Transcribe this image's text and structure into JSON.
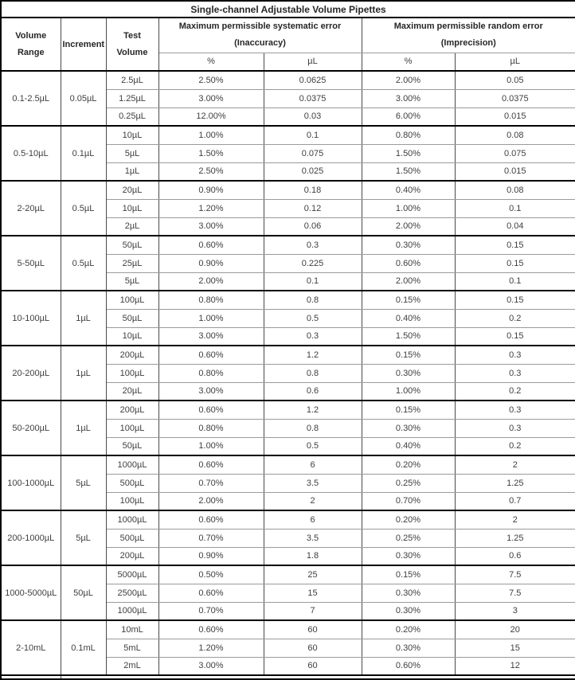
{
  "table": {
    "title": "Single-channel Adjustable Volume Pipettes",
    "columns": {
      "volume_range": {
        "line1": "Volume",
        "line2": "Range"
      },
      "increment": "Increment",
      "test_volume": {
        "line1": "Test",
        "line2": "Volume"
      },
      "systematic": {
        "line1": "Maximum permissible systematic error",
        "line2": "(Inaccuracy)"
      },
      "random": {
        "line1": "Maximum permissible random error",
        "line2": "(Imprecision)"
      }
    },
    "subheaders": [
      "%",
      "µL",
      "%",
      "µL"
    ],
    "sections": [
      {
        "volume_range": "0.1-2.5µL",
        "increment": "0.05µL",
        "rows": [
          {
            "test_volume": "2.5µL",
            "systematic_pct": "2.50%",
            "systematic_ul": "0.0625",
            "random_pct": "2.00%",
            "random_ul": "0.05"
          },
          {
            "test_volume": "1.25µL",
            "systematic_pct": "3.00%",
            "systematic_ul": "0.0375",
            "random_pct": "3.00%",
            "random_ul": "0.0375"
          },
          {
            "test_volume": "0.25µL",
            "systematic_pct": "12.00%",
            "systematic_ul": "0.03",
            "random_pct": "6.00%",
            "random_ul": "0.015"
          }
        ]
      },
      {
        "volume_range": "0.5-10µL",
        "increment": "0.1µL",
        "rows": [
          {
            "test_volume": "10µL",
            "systematic_pct": "1.00%",
            "systematic_ul": "0.1",
            "random_pct": "0.80%",
            "random_ul": "0.08"
          },
          {
            "test_volume": "5µL",
            "systematic_pct": "1.50%",
            "systematic_ul": "0.075",
            "random_pct": "1.50%",
            "random_ul": "0.075"
          },
          {
            "test_volume": "1µL",
            "systematic_pct": "2.50%",
            "systematic_ul": "0.025",
            "random_pct": "1.50%",
            "random_ul": "0.015"
          }
        ]
      },
      {
        "volume_range": "2-20µL",
        "increment": "0.5µL",
        "rows": [
          {
            "test_volume": "20µL",
            "systematic_pct": "0.90%",
            "systematic_ul": "0.18",
            "random_pct": "0.40%",
            "random_ul": "0.08"
          },
          {
            "test_volume": "10µL",
            "systematic_pct": "1.20%",
            "systematic_ul": "0.12",
            "random_pct": "1.00%",
            "random_ul": "0.1"
          },
          {
            "test_volume": "2µL",
            "systematic_pct": "3.00%",
            "systematic_ul": "0.06",
            "random_pct": "2.00%",
            "random_ul": "0.04"
          }
        ]
      },
      {
        "volume_range": "5-50µL",
        "increment": "0.5µL",
        "rows": [
          {
            "test_volume": "50µL",
            "systematic_pct": "0.60%",
            "systematic_ul": "0.3",
            "random_pct": "0.30%",
            "random_ul": "0.15"
          },
          {
            "test_volume": "25µL",
            "systematic_pct": "0.90%",
            "systematic_ul": "0.225",
            "random_pct": "0.60%",
            "random_ul": "0.15"
          },
          {
            "test_volume": "5µL",
            "systematic_pct": "2.00%",
            "systematic_ul": "0.1",
            "random_pct": "2.00%",
            "random_ul": "0.1"
          }
        ]
      },
      {
        "volume_range": "10-100µL",
        "increment": "1µL",
        "rows": [
          {
            "test_volume": "100µL",
            "systematic_pct": "0.80%",
            "systematic_ul": "0.8",
            "random_pct": "0.15%",
            "random_ul": "0.15"
          },
          {
            "test_volume": "50µL",
            "systematic_pct": "1.00%",
            "systematic_ul": "0.5",
            "random_pct": "0.40%",
            "random_ul": "0.2"
          },
          {
            "test_volume": "10µL",
            "systematic_pct": "3.00%",
            "systematic_ul": "0.3",
            "random_pct": "1.50%",
            "random_ul": "0.15"
          }
        ]
      },
      {
        "volume_range": "20-200µL",
        "increment": "1µL",
        "rows": [
          {
            "test_volume": "200µL",
            "systematic_pct": "0.60%",
            "systematic_ul": "1.2",
            "random_pct": "0.15%",
            "random_ul": "0.3"
          },
          {
            "test_volume": "100µL",
            "systematic_pct": "0.80%",
            "systematic_ul": "0.8",
            "random_pct": "0.30%",
            "random_ul": "0.3"
          },
          {
            "test_volume": "20µL",
            "systematic_pct": "3.00%",
            "systematic_ul": "0.6",
            "random_pct": "1.00%",
            "random_ul": "0.2"
          }
        ]
      },
      {
        "volume_range": "50-200µL",
        "increment": "1µL",
        "rows": [
          {
            "test_volume": "200µL",
            "systematic_pct": "0.60%",
            "systematic_ul": "1.2",
            "random_pct": "0.15%",
            "random_ul": "0.3"
          },
          {
            "test_volume": "100µL",
            "systematic_pct": "0.80%",
            "systematic_ul": "0.8",
            "random_pct": "0.30%",
            "random_ul": "0.3"
          },
          {
            "test_volume": "50µL",
            "systematic_pct": "1.00%",
            "systematic_ul": "0.5",
            "random_pct": "0.40%",
            "random_ul": "0.2"
          }
        ]
      },
      {
        "volume_range": "100-1000µL",
        "increment": "5µL",
        "rows": [
          {
            "test_volume": "1000µL",
            "systematic_pct": "0.60%",
            "systematic_ul": "6",
            "random_pct": "0.20%",
            "random_ul": "2"
          },
          {
            "test_volume": "500µL",
            "systematic_pct": "0.70%",
            "systematic_ul": "3.5",
            "random_pct": "0.25%",
            "random_ul": "1.25"
          },
          {
            "test_volume": "100µL",
            "systematic_pct": "2.00%",
            "systematic_ul": "2",
            "random_pct": "0.70%",
            "random_ul": "0.7"
          }
        ]
      },
      {
        "volume_range": "200-1000µL",
        "increment": "5µL",
        "rows": [
          {
            "test_volume": "1000µL",
            "systematic_pct": "0.60%",
            "systematic_ul": "6",
            "random_pct": "0.20%",
            "random_ul": "2"
          },
          {
            "test_volume": "500µL",
            "systematic_pct": "0.70%",
            "systematic_ul": "3.5",
            "random_pct": "0.25%",
            "random_ul": "1.25"
          },
          {
            "test_volume": "200µL",
            "systematic_pct": "0.90%",
            "systematic_ul": "1.8",
            "random_pct": "0.30%",
            "random_ul": "0.6"
          }
        ]
      },
      {
        "volume_range": "1000-5000µL",
        "increment": "50µL",
        "rows": [
          {
            "test_volume": "5000µL",
            "systematic_pct": "0.50%",
            "systematic_ul": "25",
            "random_pct": "0.15%",
            "random_ul": "7.5"
          },
          {
            "test_volume": "2500µL",
            "systematic_pct": "0.60%",
            "systematic_ul": "15",
            "random_pct": "0.30%",
            "random_ul": "7.5"
          },
          {
            "test_volume": "1000µL",
            "systematic_pct": "0.70%",
            "systematic_ul": "7",
            "random_pct": "0.30%",
            "random_ul": "3"
          }
        ]
      },
      {
        "volume_range": "2-10mL",
        "increment": "0.1mL",
        "rows": [
          {
            "test_volume": "10mL",
            "systematic_pct": "0.60%",
            "systematic_ul": "60",
            "random_pct": "0.20%",
            "random_ul": "20"
          },
          {
            "test_volume": "5mL",
            "systematic_pct": "1.20%",
            "systematic_ul": "60",
            "random_pct": "0.30%",
            "random_ul": "15"
          },
          {
            "test_volume": "2mL",
            "systematic_pct": "3.00%",
            "systematic_ul": "60",
            "random_pct": "0.60%",
            "random_ul": "12"
          }
        ]
      }
    ],
    "colors": {
      "outer_border": "#000000",
      "section_border": "#000000",
      "inner_row_border": "#9b9b9b",
      "column_border": "#4a4a4a",
      "header_text": "#262626",
      "data_text": "#3f3f3f",
      "background": "#ffffff"
    }
  }
}
